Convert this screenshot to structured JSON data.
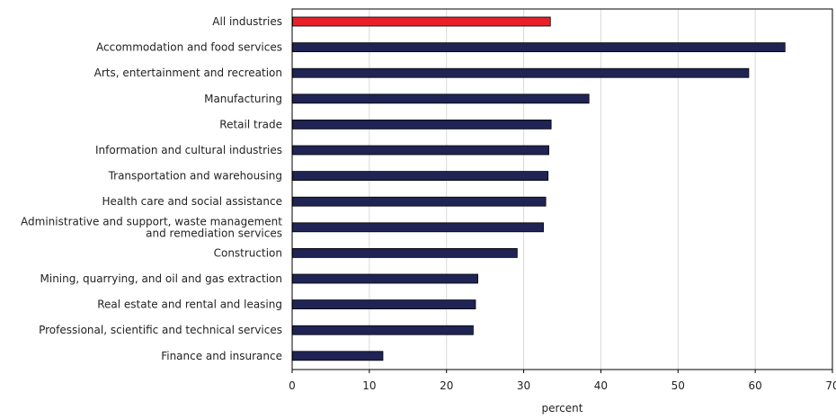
{
  "chart_data": {
    "type": "bar",
    "orientation": "horizontal",
    "categories": [
      "All industries",
      "Accommodation and food services",
      "Arts, entertainment and recreation",
      "Manufacturing",
      "Retail trade",
      "Information and cultural industries",
      "Transportation and warehousing",
      "Health care and social assistance",
      "Administrative and support, waste management and remediation services",
      "Construction",
      "Mining, quarrying, and oil and gas extraction",
      "Real estate and rental and leasing",
      "Professional, scientific and technical services",
      "Finance and insurance"
    ],
    "category_label_lines": [
      [
        "All industries"
      ],
      [
        "Accommodation and food services"
      ],
      [
        "Arts, entertainment and recreation"
      ],
      [
        "Manufacturing"
      ],
      [
        "Retail trade"
      ],
      [
        "Information and cultural industries"
      ],
      [
        "Transportation and warehousing"
      ],
      [
        "Health care and social assistance"
      ],
      [
        "Administrative and support, waste management",
        "and remediation services"
      ],
      [
        "Construction"
      ],
      [
        "Mining, quarrying, and oil and gas extraction"
      ],
      [
        "Real estate and rental and leasing"
      ],
      [
        "Professional, scientific and technical services"
      ],
      [
        "Finance and insurance"
      ]
    ],
    "values": [
      33.4,
      63.8,
      59.1,
      38.4,
      33.5,
      33.2,
      33.1,
      32.8,
      32.5,
      29.1,
      24.0,
      23.7,
      23.4,
      11.7
    ],
    "bar_colors": [
      "#e8202a",
      "#1f2454",
      "#1f2454",
      "#1f2454",
      "#1f2454",
      "#1f2454",
      "#1f2454",
      "#1f2454",
      "#1f2454",
      "#1f2454",
      "#1f2454",
      "#1f2454",
      "#1f2454",
      "#1f2454"
    ],
    "xlim": [
      0,
      70
    ],
    "xticks": [
      0,
      10,
      20,
      30,
      40,
      50,
      60,
      70
    ],
    "xlabel": "percent",
    "title": "",
    "grid": "vertical",
    "gridline_color": "#d9d9d9"
  }
}
